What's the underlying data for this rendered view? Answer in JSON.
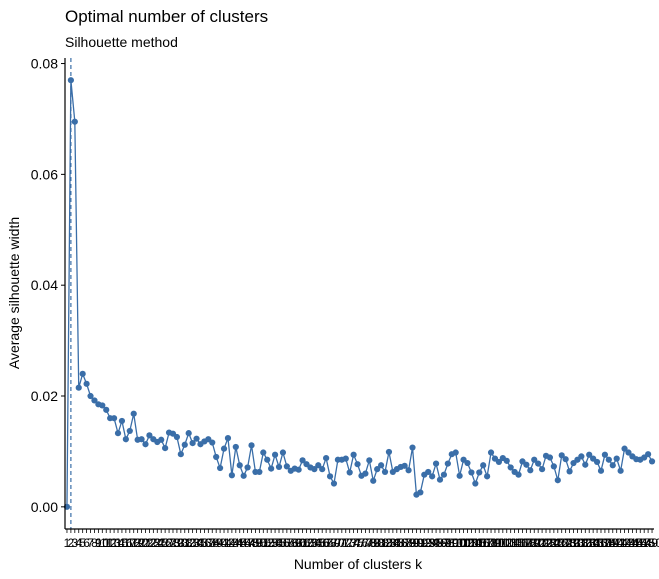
{
  "chart_data": {
    "type": "line",
    "title": "Optimal number of clusters",
    "subtitle": "Silhouette method",
    "xlabel": "Number of clusters k",
    "ylabel": "Average silhouette width",
    "ylim": [
      -0.004,
      0.081
    ],
    "yticks": [
      0,
      0.02,
      0.04,
      0.06,
      0.08
    ],
    "ytick_labels": [
      "0.00",
      "0.02",
      "0.04",
      "0.06",
      "0.08"
    ],
    "xlim": [
      0.5,
      150.5
    ],
    "x": [
      1,
      2,
      3,
      4,
      5,
      6,
      7,
      8,
      9,
      10,
      11,
      12,
      13,
      14,
      15,
      16,
      17,
      18,
      19,
      20,
      21,
      22,
      23,
      24,
      25,
      26,
      27,
      28,
      29,
      30,
      31,
      32,
      33,
      34,
      35,
      36,
      37,
      38,
      39,
      40,
      41,
      42,
      43,
      44,
      45,
      46,
      47,
      48,
      49,
      50,
      51,
      52,
      53,
      54,
      55,
      56,
      57,
      58,
      59,
      60,
      61,
      62,
      63,
      64,
      65,
      66,
      67,
      68,
      69,
      70,
      71,
      72,
      73,
      74,
      75,
      76,
      77,
      78,
      79,
      80,
      81,
      82,
      83,
      84,
      85,
      86,
      87,
      88,
      89,
      90,
      91,
      92,
      93,
      94,
      95,
      96,
      97,
      98,
      99,
      100,
      101,
      102,
      103,
      104,
      105,
      106,
      107,
      108,
      109,
      110,
      111,
      112,
      113,
      114,
      115,
      116,
      117,
      118,
      119,
      120,
      121,
      122,
      123,
      124,
      125,
      126,
      127,
      128,
      129,
      130,
      131,
      132,
      133,
      134,
      135,
      136,
      137,
      138,
      139,
      140,
      141,
      142,
      143,
      144,
      145,
      146,
      147,
      148,
      149,
      150
    ],
    "series": [
      {
        "values": [
          0.0,
          0.077,
          0.0695,
          0.0215,
          0.024,
          0.0222,
          0.02,
          0.0192,
          0.0185,
          0.0183,
          0.0175,
          0.016,
          0.016,
          0.0133,
          0.0155,
          0.0122,
          0.0137,
          0.0168,
          0.0121,
          0.0122,
          0.0113,
          0.0129,
          0.0122,
          0.0117,
          0.0121,
          0.0106,
          0.0134,
          0.0132,
          0.0126,
          0.0095,
          0.0112,
          0.0133,
          0.0115,
          0.0123,
          0.0113,
          0.0118,
          0.0122,
          0.0116,
          0.009,
          0.007,
          0.0105,
          0.0124,
          0.0057,
          0.0108,
          0.0075,
          0.0056,
          0.0071,
          0.0111,
          0.0063,
          0.0063,
          0.0098,
          0.0085,
          0.0069,
          0.0094,
          0.0072,
          0.0098,
          0.0073,
          0.0065,
          0.0069,
          0.0067,
          0.0084,
          0.0077,
          0.0071,
          0.0068,
          0.0075,
          0.0068,
          0.0088,
          0.0055,
          0.0042,
          0.0085,
          0.0085,
          0.0087,
          0.0062,
          0.0094,
          0.0077,
          0.0056,
          0.006,
          0.0084,
          0.0047,
          0.0068,
          0.0075,
          0.0063,
          0.0099,
          0.0063,
          0.0068,
          0.0072,
          0.0074,
          0.0066,
          0.0107,
          0.0022,
          0.0026,
          0.0058,
          0.0063,
          0.0055,
          0.0078,
          0.0049,
          0.0058,
          0.0078,
          0.0095,
          0.0098,
          0.0056,
          0.0085,
          0.0079,
          0.0062,
          0.0042,
          0.0062,
          0.0075,
          0.0055,
          0.0098,
          0.0087,
          0.0081,
          0.0088,
          0.0083,
          0.0071,
          0.0063,
          0.0058,
          0.0082,
          0.0076,
          0.0066,
          0.0085,
          0.0078,
          0.0068,
          0.0092,
          0.0089,
          0.0073,
          0.0048,
          0.0093,
          0.0086,
          0.0064,
          0.0079,
          0.0085,
          0.0091,
          0.0076,
          0.0094,
          0.0087,
          0.0081,
          0.0065,
          0.0094,
          0.0085,
          0.0075,
          0.0087,
          0.0065,
          0.0105,
          0.0098,
          0.0091,
          0.0086,
          0.0085,
          0.0089,
          0.0095,
          0.0082
        ]
      }
    ],
    "optimal_k": 2,
    "line_color": "#3a6ea8",
    "vline_color": "#3a6ea8",
    "vline_style": "dashed",
    "grid": false
  }
}
